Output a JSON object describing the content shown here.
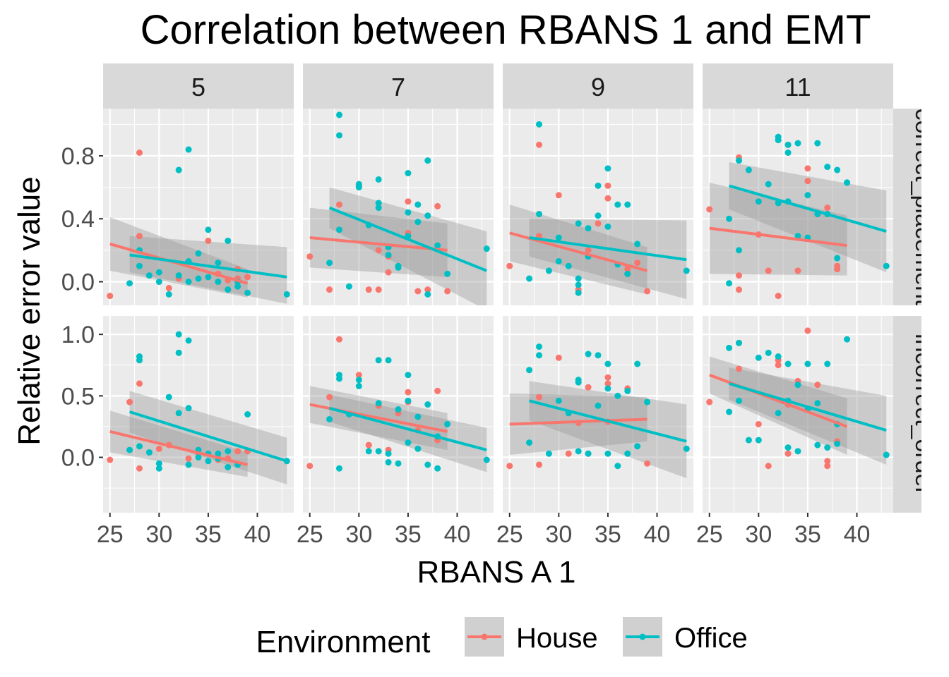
{
  "chart_data": {
    "type": "scatter",
    "title": "Correlation between RBANS 1 and EMT",
    "xlabel": "RBANS A 1",
    "ylabel": "Relative error value",
    "legend": {
      "title": "Environment",
      "position": "bottom",
      "entries": [
        "House",
        "Office"
      ]
    },
    "colors": {
      "House": "#F8766D",
      "Office": "#00BFC4",
      "panel_bg": "#EBEBEB",
      "strip_bg": "#D9D9D9",
      "ci_fill": "#999999"
    },
    "grid": true,
    "xlim": [
      24.3,
      43.7
    ],
    "x_ticks": [
      25,
      30,
      35,
      40
    ],
    "columns": [
      "5",
      "7",
      "9",
      "11"
    ],
    "rows": [
      {
        "label": "correct_placement",
        "ylim": [
          -0.15,
          1.1
        ],
        "y_ticks": [
          0.0,
          0.4,
          0.8
        ],
        "y_tick_labels": [
          "0.0",
          "0.4",
          "0.8"
        ]
      },
      {
        "label": "incorrect_order",
        "ylim": [
          -0.45,
          1.15
        ],
        "y_ticks": [
          0.0,
          0.5,
          1.0
        ],
        "y_tick_labels": [
          "0.0",
          "0.5",
          "1.0"
        ]
      }
    ],
    "panels": [
      {
        "row": 0,
        "col": 0,
        "house": {
          "x": [
            25,
            28,
            28,
            31,
            32,
            35,
            36,
            37,
            38,
            38,
            39
          ],
          "y": [
            -0.09,
            0.82,
            0.29,
            -0.04,
            0.02,
            0.26,
            0.05,
            0.01,
            0.08,
            0.02,
            0.03
          ]
        },
        "office": {
          "x": [
            27,
            28,
            28,
            29,
            30,
            30,
            31,
            32,
            32,
            33,
            33,
            33,
            34,
            34,
            35,
            35,
            36,
            36,
            37,
            37,
            38,
            38,
            39,
            43
          ],
          "y": [
            -0.01,
            0.1,
            0.2,
            0.04,
            0.0,
            0.06,
            -0.08,
            0.71,
            0.04,
            0.84,
            0.13,
            0.0,
            0.18,
            0.02,
            0.33,
            0.03,
            0.12,
            0.0,
            0.26,
            -0.05,
            0.0,
            -0.03,
            -0.07,
            -0.08
          ]
        },
        "house_fit": {
          "x": [
            25,
            39
          ],
          "y": [
            0.24,
            -0.01
          ],
          "ci_lower": [
            0.07,
            -0.1
          ],
          "ci_upper": [
            0.41,
            0.08
          ]
        },
        "office_fit": {
          "x": [
            27,
            43
          ],
          "y": [
            0.17,
            0.03
          ],
          "ci_lower": [
            0.06,
            -0.14
          ],
          "ci_upper": [
            0.29,
            0.22
          ]
        }
      },
      {
        "row": 0,
        "col": 1,
        "house": {
          "x": [
            25,
            27,
            28,
            30,
            31,
            32,
            32,
            33,
            33,
            35,
            35,
            36,
            37,
            38,
            39
          ],
          "y": [
            0.16,
            -0.05,
            0.49,
            0.61,
            -0.05,
            0.2,
            -0.05,
            0.16,
            0.06,
            0.51,
            0.31,
            -0.06,
            -0.05,
            0.48,
            -0.06
          ]
        },
        "office": {
          "x": [
            27,
            28,
            28,
            28,
            29,
            30,
            30,
            31,
            32,
            32,
            32,
            33,
            33,
            34,
            34,
            35,
            35,
            35,
            36,
            36,
            37,
            37,
            37,
            38,
            39,
            43
          ],
          "y": [
            0.12,
            1.06,
            0.93,
            0.33,
            -0.03,
            0.6,
            0.62,
            0.36,
            0.65,
            0.5,
            0.47,
            0.22,
            0.17,
            0.1,
            0.09,
            0.69,
            0.44,
            0.29,
            0.49,
            0.38,
            0.77,
            0.42,
            -0.08,
            0.23,
            0.05,
            0.21
          ]
        },
        "house_fit": {
          "x": [
            25,
            39
          ],
          "y": [
            0.28,
            0.2
          ],
          "ci_lower": [
            0.09,
            0.03
          ],
          "ci_upper": [
            0.47,
            0.37
          ]
        },
        "office_fit": {
          "x": [
            27,
            43
          ],
          "y": [
            0.47,
            0.07
          ],
          "ci_lower": [
            0.34,
            -0.18
          ],
          "ci_upper": [
            0.6,
            0.32
          ]
        }
      },
      {
        "row": 0,
        "col": 2,
        "house": {
          "x": [
            25,
            28,
            28,
            30,
            32,
            33,
            34,
            35,
            35,
            37,
            37,
            38,
            39
          ],
          "y": [
            0.1,
            0.87,
            0.29,
            0.55,
            -0.05,
            0.2,
            0.37,
            0.53,
            0.61,
            0.08,
            0.05,
            0.12,
            -0.06
          ]
        },
        "office": {
          "x": [
            27,
            28,
            28,
            29,
            30,
            30,
            31,
            32,
            32,
            32,
            32,
            33,
            33,
            34,
            34,
            35,
            35,
            36,
            36,
            37,
            37,
            38,
            43
          ],
          "y": [
            0.02,
            1.0,
            0.43,
            0.07,
            0.28,
            0.13,
            0.1,
            -0.07,
            0.02,
            -0.02,
            0.37,
            0.16,
            0.34,
            0.61,
            0.42,
            0.72,
            0.35,
            0.49,
            0.11,
            0.49,
            0.05,
            0.24,
            0.07
          ]
        },
        "house_fit": {
          "x": [
            25,
            39
          ],
          "y": [
            0.31,
            0.07
          ],
          "ci_lower": [
            0.13,
            -0.08
          ],
          "ci_upper": [
            0.49,
            0.22
          ]
        },
        "office_fit": {
          "x": [
            27,
            43
          ],
          "y": [
            0.28,
            0.14
          ],
          "ci_lower": [
            0.16,
            -0.11
          ],
          "ci_upper": [
            0.4,
            0.39
          ]
        }
      },
      {
        "row": 0,
        "col": 3,
        "house": {
          "x": [
            25,
            28,
            28,
            28,
            30,
            31,
            32,
            33,
            34,
            35,
            35,
            37,
            38,
            38
          ],
          "y": [
            0.46,
            0.79,
            0.04,
            -0.05,
            0.3,
            0.07,
            -0.09,
            0.87,
            0.07,
            0.64,
            0.72,
            0.47,
            0.1,
            0.08
          ]
        },
        "office": {
          "x": [
            27,
            27,
            28,
            28,
            29,
            30,
            31,
            32,
            32,
            32,
            33,
            33,
            33,
            34,
            34,
            35,
            35,
            36,
            36,
            37,
            37,
            38,
            38,
            39,
            39,
            43
          ],
          "y": [
            0.4,
            -0.01,
            0.77,
            0.2,
            0.71,
            0.51,
            0.62,
            0.92,
            0.9,
            0.5,
            0.87,
            0.82,
            0.51,
            0.88,
            0.29,
            0.55,
            0.28,
            0.88,
            0.43,
            0.73,
            0.43,
            0.71,
            0.15,
            0.63,
            0.63,
            0.1
          ]
        },
        "house_fit": {
          "x": [
            25,
            39
          ],
          "y": [
            0.34,
            0.23
          ],
          "ci_lower": [
            0.05,
            0.04
          ],
          "ci_upper": [
            0.63,
            0.42
          ]
        },
        "office_fit": {
          "x": [
            27,
            43
          ],
          "y": [
            0.61,
            0.32
          ],
          "ci_lower": [
            0.46,
            0.06
          ],
          "ci_upper": [
            0.76,
            0.58
          ]
        }
      },
      {
        "row": 1,
        "col": 0,
        "house": {
          "x": [
            25,
            27,
            28,
            28,
            30,
            31,
            33,
            34,
            36,
            37,
            38,
            39
          ],
          "y": [
            -0.02,
            0.45,
            0.6,
            -0.09,
            0.07,
            0.1,
            -0.01,
            0.03,
            -0.02,
            -0.01,
            0.05,
            0.05
          ]
        },
        "office": {
          "x": [
            27,
            28,
            28,
            28,
            29,
            30,
            30,
            31,
            32,
            32,
            32,
            33,
            33,
            33,
            34,
            34,
            35,
            35,
            36,
            36,
            37,
            37,
            38,
            39,
            43
          ],
          "y": [
            0.06,
            0.82,
            0.79,
            0.09,
            0.04,
            -0.05,
            -0.09,
            0.49,
            0.36,
            0.85,
            1.0,
            0.95,
            0.4,
            -0.06,
            0.0,
            0.06,
            0.03,
            -0.03,
            0.03,
            -0.01,
            0.05,
            -0.08,
            -0.06,
            0.35,
            -0.03
          ]
        },
        "house_fit": {
          "x": [
            25,
            39
          ],
          "y": [
            0.21,
            -0.06
          ],
          "ci_lower": [
            0.04,
            -0.16
          ],
          "ci_upper": [
            0.38,
            0.04
          ]
        },
        "office_fit": {
          "x": [
            27,
            43
          ],
          "y": [
            0.37,
            -0.03
          ],
          "ci_lower": [
            0.2,
            -0.22
          ],
          "ci_upper": [
            0.54,
            0.16
          ]
        }
      },
      {
        "row": 1,
        "col": 1,
        "house": {
          "x": [
            25,
            27,
            28,
            30,
            31,
            32,
            33,
            34,
            35,
            35,
            36,
            38,
            38
          ],
          "y": [
            -0.07,
            0.49,
            0.96,
            0.67,
            0.1,
            0.42,
            0.06,
            0.36,
            0.53,
            0.45,
            0.22,
            0.54,
            0.14
          ]
        },
        "office": {
          "x": [
            27,
            28,
            28,
            28,
            29,
            30,
            30,
            31,
            32,
            32,
            32,
            33,
            33,
            33,
            34,
            34,
            35,
            35,
            35,
            36,
            36,
            37,
            37,
            38,
            38,
            39,
            43
          ],
          "y": [
            0.31,
            -0.09,
            0.64,
            0.67,
            0.35,
            0.63,
            0.58,
            0.05,
            0.79,
            0.44,
            0.05,
            0.79,
            0.03,
            -0.04,
            0.39,
            -0.05,
            0.67,
            0.46,
            0.12,
            0.33,
            0.07,
            0.43,
            -0.06,
            0.17,
            -0.09,
            0.27,
            -0.02
          ]
        },
        "house_fit": {
          "x": [
            25,
            39
          ],
          "y": [
            0.43,
            0.21
          ],
          "ci_lower": [
            0.28,
            0.06
          ],
          "ci_upper": [
            0.58,
            0.36
          ]
        },
        "office_fit": {
          "x": [
            27,
            43
          ],
          "y": [
            0.4,
            0.06
          ],
          "ci_lower": [
            0.29,
            -0.12
          ],
          "ci_upper": [
            0.51,
            0.24
          ]
        }
      },
      {
        "row": 1,
        "col": 2,
        "house": {
          "x": [
            25,
            28,
            28,
            30,
            31,
            32,
            33,
            33,
            35,
            35,
            35,
            37,
            39
          ],
          "y": [
            -0.07,
            0.49,
            -0.06,
            0.81,
            0.03,
            0.28,
            0.57,
            0.03,
            0.65,
            0.6,
            0.29,
            0.56,
            -0.05
          ]
        },
        "office": {
          "x": [
            27,
            27,
            28,
            28,
            29,
            30,
            31,
            32,
            32,
            32,
            33,
            33,
            34,
            34,
            35,
            35,
            35,
            36,
            36,
            37,
            37,
            38,
            38,
            39,
            43
          ],
          "y": [
            0.71,
            0.12,
            0.9,
            0.83,
            0.03,
            0.46,
            0.36,
            0.61,
            0.63,
            0.05,
            0.84,
            0.03,
            0.83,
            0.42,
            0.76,
            0.56,
            0.03,
            0.5,
            -0.07,
            0.54,
            0.03,
            0.76,
            0.09,
            0.45,
            0.07
          ]
        },
        "house_fit": {
          "x": [
            25,
            39
          ],
          "y": [
            0.27,
            0.31
          ],
          "ci_lower": [
            0.02,
            0.13
          ],
          "ci_upper": [
            0.52,
            0.49
          ]
        },
        "office_fit": {
          "x": [
            27,
            43
          ],
          "y": [
            0.46,
            0.13
          ],
          "ci_lower": [
            0.3,
            -0.17
          ],
          "ci_upper": [
            0.62,
            0.43
          ]
        }
      },
      {
        "row": 1,
        "col": 3,
        "house": {
          "x": [
            25,
            28,
            28,
            30,
            31,
            32,
            32,
            33,
            33,
            34,
            35,
            36,
            37,
            37,
            38
          ],
          "y": [
            0.45,
            0.93,
            0.72,
            0.27,
            -0.07,
            0.79,
            0.75,
            0.03,
            0.43,
            0.62,
            1.03,
            0.59,
            -0.03,
            -0.07,
            0.13
          ]
        },
        "office": {
          "x": [
            27,
            27,
            28,
            28,
            29,
            30,
            30,
            31,
            32,
            32,
            33,
            33,
            33,
            34,
            34,
            35,
            35,
            36,
            36,
            37,
            37,
            38,
            38,
            39,
            43
          ],
          "y": [
            0.89,
            0.37,
            0.93,
            0.46,
            0.14,
            0.81,
            0.14,
            0.85,
            0.82,
            0.36,
            0.76,
            0.46,
            0.08,
            0.59,
            0.05,
            0.76,
            0.39,
            0.44,
            0.1,
            0.76,
            0.08,
            0.27,
            0.11,
            0.96,
            0.02
          ]
        },
        "house_fit": {
          "x": [
            25,
            39
          ],
          "y": [
            0.67,
            0.25
          ],
          "ci_lower": [
            0.52,
            0.02
          ],
          "ci_upper": [
            0.82,
            0.48
          ]
        },
        "office_fit": {
          "x": [
            27,
            43
          ],
          "y": [
            0.6,
            0.22
          ],
          "ci_lower": [
            0.47,
            -0.06
          ],
          "ci_upper": [
            0.73,
            0.5
          ]
        }
      }
    ]
  }
}
